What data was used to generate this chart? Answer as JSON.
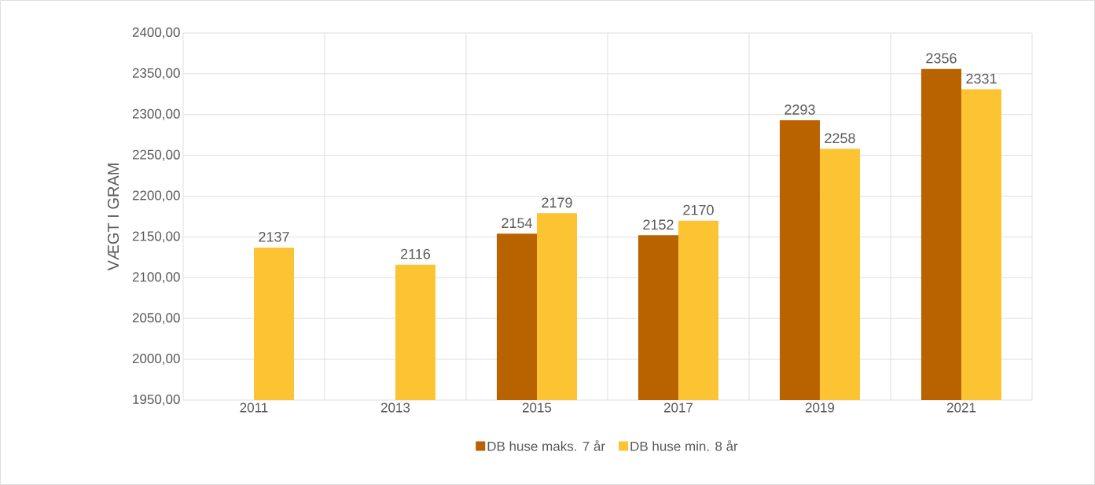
{
  "chart_data": {
    "type": "bar",
    "ylabel": "VÆGT I GRAM",
    "categories": [
      "2011",
      "2013",
      "2015",
      "2017",
      "2019",
      "2021"
    ],
    "series": [
      {
        "name": "DB huse maks. 7 år",
        "color": "#b86200",
        "values": [
          null,
          null,
          2154,
          2152,
          2293,
          2356
        ]
      },
      {
        "name": "DB huse min. 8 år",
        "color": "#fcc433",
        "values": [
          2137,
          2116,
          2179,
          2170,
          2258,
          2331
        ]
      }
    ],
    "ylim": [
      1950,
      2400
    ],
    "yticks": [
      {
        "value": 1950,
        "label": "1950,00"
      },
      {
        "value": 2000,
        "label": "2000,00"
      },
      {
        "value": 2050,
        "label": "2050,00"
      },
      {
        "value": 2100,
        "label": "2100,00"
      },
      {
        "value": 2150,
        "label": "2150,00"
      },
      {
        "value": 2200,
        "label": "2200,00"
      },
      {
        "value": 2250,
        "label": "2250,00"
      },
      {
        "value": 2300,
        "label": "2300,00"
      },
      {
        "value": 2350,
        "label": "2350,00"
      },
      {
        "value": 2400,
        "label": "2400,00"
      }
    ],
    "data_labels": true,
    "grid": true,
    "legend": "bottom"
  }
}
